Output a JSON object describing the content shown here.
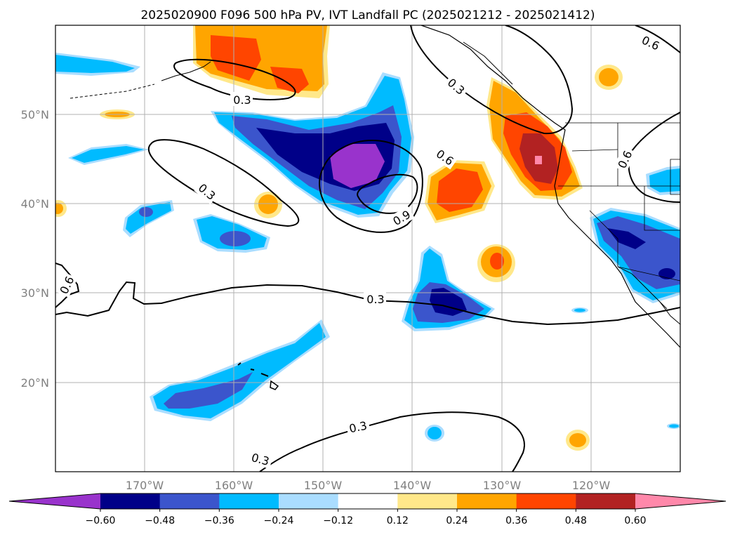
{
  "title": "2025020900 F096 500 hPa PV, IVT Landfall PC (2025021212 - 2025021412)",
  "map": {
    "extent": {
      "lon_min": -180,
      "lon_max": -110,
      "lat_min": 10,
      "lat_max": 60
    },
    "lat_ticks": [
      "50°N",
      "40°N",
      "30°N",
      "20°N"
    ],
    "lon_ticks": [
      "170°W",
      "160°W",
      "150°W",
      "140°W",
      "130°W",
      "120°W"
    ],
    "contour_labels": [
      "0.3",
      "0.3",
      "0.6",
      "0.9",
      "0.3",
      "0.3",
      "0.6",
      "0.3",
      "0.6",
      "0.6",
      "0.3",
      "0.3"
    ]
  },
  "colorbar": {
    "ticks": [
      "−0.60",
      "−0.48",
      "−0.36",
      "−0.24",
      "−0.12",
      "0.12",
      "0.24",
      "0.36",
      "0.48",
      "0.60"
    ],
    "colors": [
      "#9933cc",
      "#000088",
      "#3b55cc",
      "#00bbff",
      "#aaddff",
      "#ffffff",
      "#ffe88a",
      "#ffa500",
      "#ff4500",
      "#b22222",
      "#ff88aa"
    ]
  },
  "colors": {
    "gridline": "#b0b0b0",
    "coastline": "#000000",
    "tick_label": "#808080"
  }
}
